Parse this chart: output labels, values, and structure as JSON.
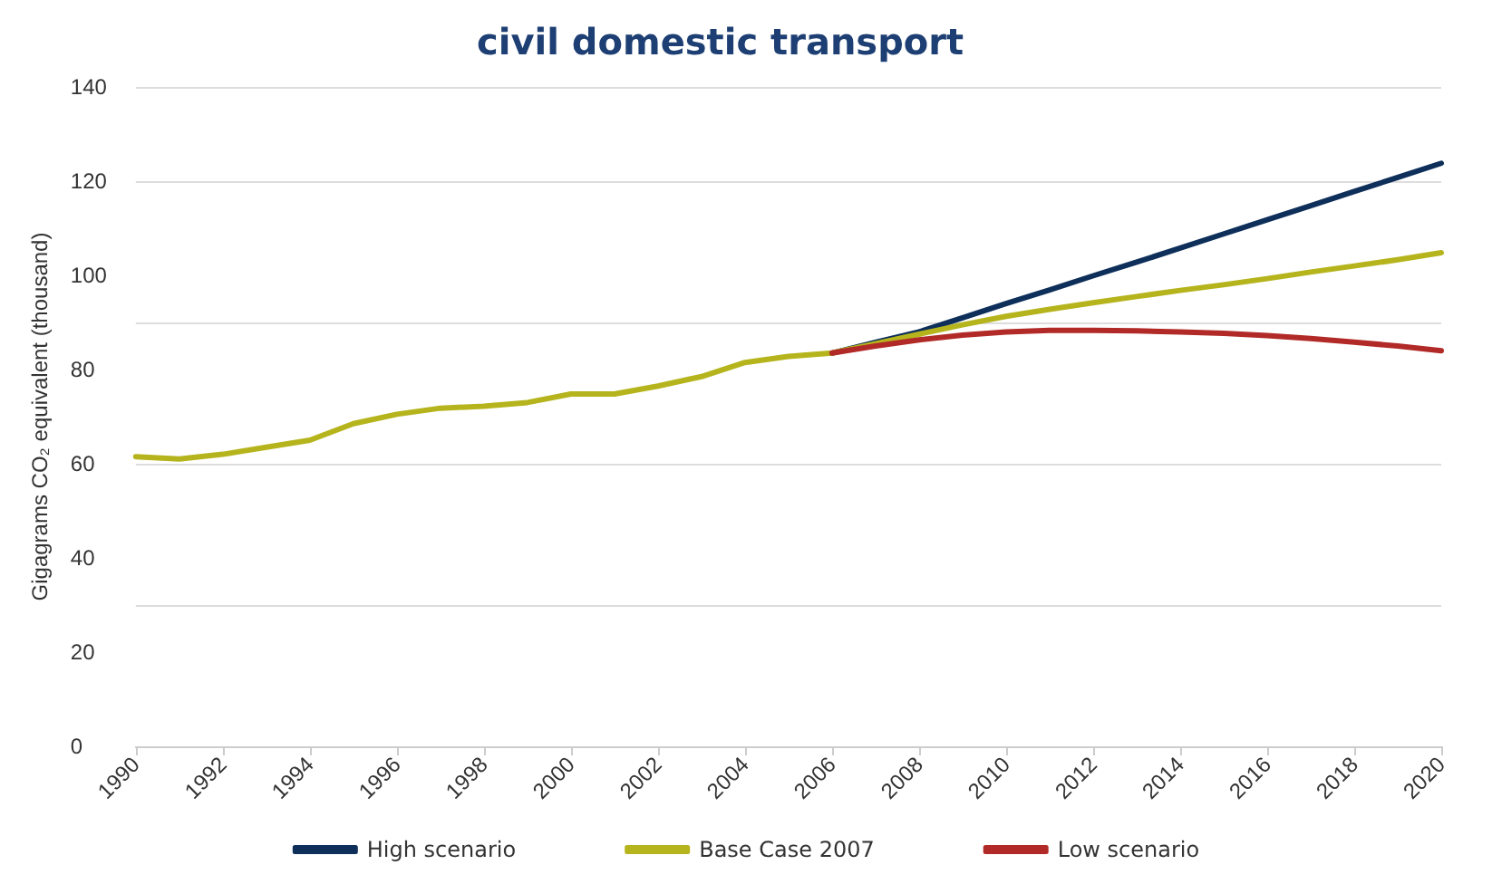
{
  "chart_data": {
    "type": "line",
    "title": "civil domestic transport",
    "ylabel": "Gigagrams CO₂ equivalent (thousand)",
    "x": [
      1990,
      1991,
      1992,
      1993,
      1994,
      1995,
      1996,
      1997,
      1998,
      1999,
      2000,
      2001,
      2002,
      2003,
      2004,
      2005,
      2006,
      2007,
      2008,
      2009,
      2010,
      2011,
      2012,
      2013,
      2014,
      2015,
      2016,
      2017,
      2018,
      2019,
      2020
    ],
    "series": [
      {
        "name": "High scenario",
        "color": "#0d2f5a",
        "values": [
          null,
          null,
          null,
          null,
          null,
          null,
          null,
          null,
          null,
          null,
          null,
          null,
          null,
          null,
          null,
          null,
          83.5,
          85.8,
          88,
          91,
          94,
          96.9,
          99.9,
          102.8,
          105.8,
          108.8,
          111.8,
          114.8,
          117.8,
          120.8,
          123.8
        ]
      },
      {
        "name": "Base Case 2007",
        "color": "#b5b41c",
        "values": [
          61.5,
          61,
          62,
          63.5,
          65,
          68.5,
          70.5,
          71.8,
          72.2,
          73,
          74.8,
          74.8,
          76.5,
          78.5,
          81.5,
          82.8,
          83.5,
          85.5,
          87.5,
          89.5,
          91.3,
          92.8,
          94.2,
          95.5,
          96.8,
          98,
          99.3,
          100.7,
          102,
          103.3,
          104.8
        ]
      },
      {
        "name": "Low scenario",
        "color": "#b22a27",
        "values": [
          null,
          null,
          null,
          null,
          null,
          null,
          null,
          null,
          null,
          null,
          null,
          null,
          null,
          null,
          null,
          null,
          83.5,
          85,
          86.3,
          87.3,
          88,
          88.3,
          88.3,
          88.2,
          88,
          87.7,
          87.2,
          86.6,
          85.8,
          85,
          84
        ]
      }
    ],
    "xlim": [
      1990,
      2020
    ],
    "xticks": [
      1990,
      1992,
      1994,
      1996,
      1998,
      2000,
      2002,
      2004,
      2006,
      2008,
      2010,
      2012,
      2014,
      2016,
      2018,
      2020
    ],
    "ylim": [
      0,
      140
    ],
    "yticks": [
      0,
      20,
      40,
      60,
      80,
      100,
      120,
      140
    ],
    "grid": "y",
    "legend": "bottom",
    "marker": "none",
    "line_style": "solid"
  }
}
